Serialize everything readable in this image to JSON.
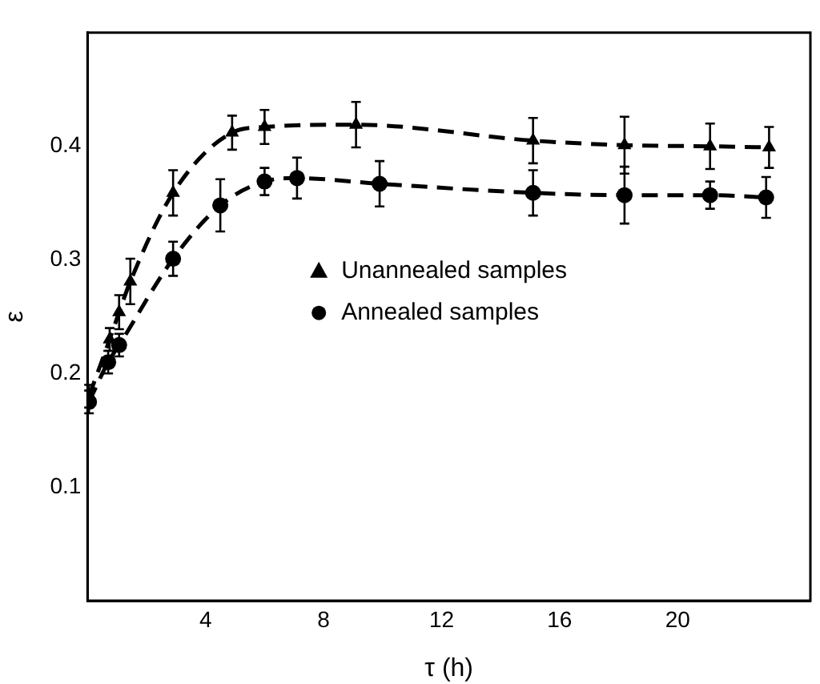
{
  "chart_data": {
    "type": "line",
    "xlabel": "τ (h)",
    "ylabel": "ε",
    "xlim": [
      0,
      24.5
    ],
    "xticks": [
      4,
      8,
      12,
      16,
      20
    ],
    "ylim": [
      0,
      0.5
    ],
    "yticks": [
      0.1,
      0.2,
      0.3,
      0.4
    ],
    "grid": false,
    "legend": "right",
    "line_style": "dashed",
    "series": [
      {
        "name": "Unannealed samples",
        "color": "#000000",
        "marker": "triangle",
        "x": [
          0.05,
          0.75,
          1.07,
          1.45,
          2.9,
          4.9,
          6.0,
          9.1,
          15.1,
          18.2,
          21.1,
          23.1
        ],
        "values": [
          0.18,
          0.23,
          0.254,
          0.281,
          0.359,
          0.412,
          0.417,
          0.419,
          0.405,
          0.401,
          0.4,
          0.399
        ],
        "errors": [
          0.01,
          0.01,
          0.015,
          0.02,
          0.02,
          0.015,
          0.015,
          0.02,
          0.02,
          0.025,
          0.02,
          0.018
        ]
      },
      {
        "name": "Annealed samples",
        "color": "#000000",
        "marker": "circle",
        "x": [
          0.05,
          0.7,
          1.07,
          2.9,
          4.5,
          6.0,
          7.1,
          9.9,
          15.1,
          18.2,
          21.1,
          23.0
        ],
        "values": [
          0.175,
          0.21,
          0.225,
          0.301,
          0.348,
          0.369,
          0.372,
          0.367,
          0.359,
          0.357,
          0.357,
          0.355
        ],
        "errors": [
          0.01,
          0.01,
          0.01,
          0.015,
          0.023,
          0.012,
          0.018,
          0.02,
          0.02,
          0.025,
          0.012,
          0.018
        ]
      }
    ]
  }
}
